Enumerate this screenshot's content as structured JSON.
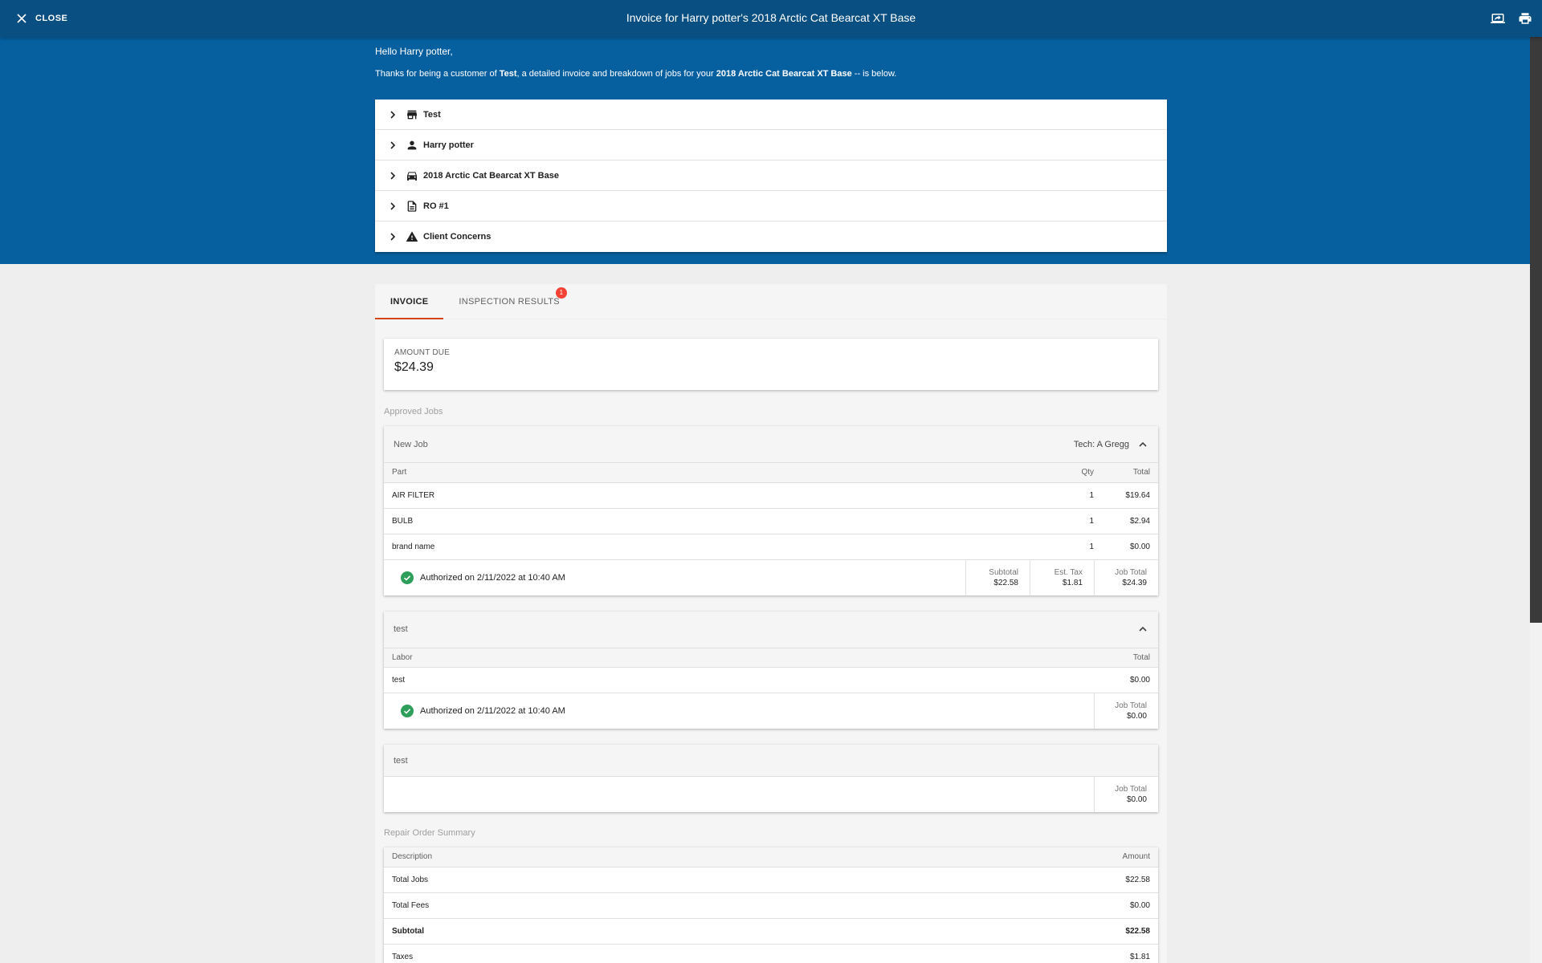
{
  "topbar": {
    "close_label": "CLOSE",
    "title": "Invoice for Harry potter's 2018 Arctic Cat Bearcat XT Base",
    "icons": [
      "screen-share-icon",
      "print-icon"
    ]
  },
  "banner": {
    "greeting": "Hello Harry potter,",
    "thanks_prefix": "Thanks for being a customer of ",
    "shop_name": "Test",
    "thanks_middle": ", a detailed invoice and breakdown of jobs for your ",
    "vehicle": "2018 Arctic Cat Bearcat XT Base",
    "thanks_suffix": " -- is below."
  },
  "info_rows": [
    {
      "label": "Test",
      "icon": "store-icon"
    },
    {
      "label": "Harry potter",
      "icon": "person-icon"
    },
    {
      "label": "2018 Arctic Cat Bearcat XT Base",
      "icon": "car-icon"
    },
    {
      "label": "RO #1",
      "icon": "document-icon"
    },
    {
      "label": "Client Concerns",
      "icon": "warning-icon"
    }
  ],
  "tabs": {
    "invoice": "INVOICE",
    "inspection": "INSPECTION RESULTS",
    "inspection_badge": "1"
  },
  "amount_due": {
    "label": "AMOUNT DUE",
    "value": "$24.39"
  },
  "approved_jobs_label": "Approved Jobs",
  "job1": {
    "title": "New Job",
    "tech": "Tech: A Gregg",
    "columns": {
      "part": "Part",
      "qty": "Qty",
      "total": "Total"
    },
    "rows": [
      {
        "name": "AIR FILTER",
        "qty": "1",
        "total": "$19.64"
      },
      {
        "name": "BULB",
        "qty": "1",
        "total": "$2.94"
      },
      {
        "name": "brand name",
        "qty": "1",
        "total": "$0.00"
      }
    ],
    "authorized": "Authorized on 2/11/2022 at 10:40 AM",
    "subtotal_label": "Subtotal",
    "subtotal": "$22.58",
    "tax_label": "Est. Tax",
    "tax": "$1.81",
    "job_total_label": "Job Total",
    "job_total": "$24.39"
  },
  "job2": {
    "title": "test",
    "columns": {
      "labor": "Labor",
      "total": "Total"
    },
    "rows": [
      {
        "name": "test",
        "total": "$0.00"
      }
    ],
    "authorized": "Authorized on 2/11/2022 at 10:40 AM",
    "job_total_label": "Job Total",
    "job_total": "$0.00"
  },
  "job3": {
    "title": "test",
    "job_total_label": "Job Total",
    "job_total": "$0.00"
  },
  "summary": {
    "label": "Repair Order Summary",
    "columns": {
      "description": "Description",
      "amount": "Amount"
    },
    "rows": [
      {
        "description": "Total Jobs",
        "amount": "$22.58"
      },
      {
        "description": "Total Fees",
        "amount": "$0.00"
      },
      {
        "description": "Subtotal",
        "amount": "$22.58"
      },
      {
        "description": "Taxes",
        "amount": "$1.81"
      }
    ]
  },
  "colors": {
    "topbar": "#0a4f82",
    "banner": "#0660a0",
    "tab_indicator": "#d84315",
    "badge": "#f44336",
    "authorized_check": "#2e9e5b"
  }
}
